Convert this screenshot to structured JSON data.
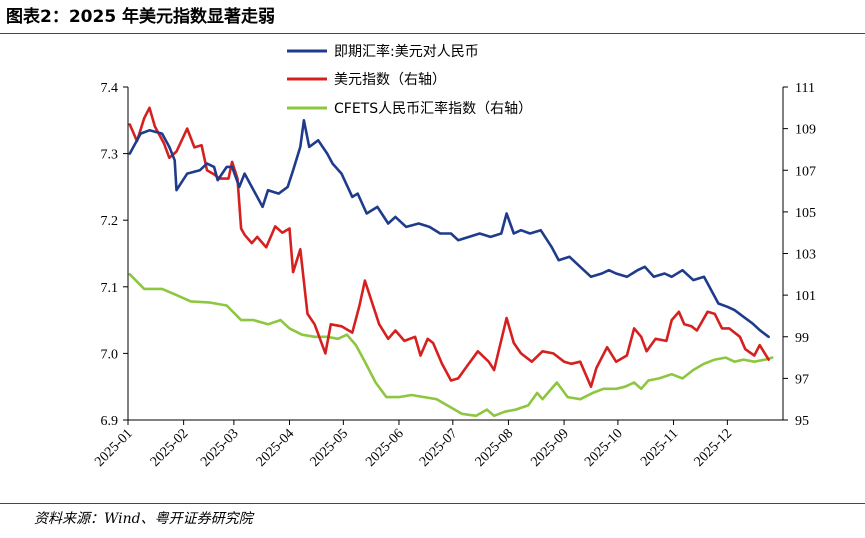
{
  "title": "图表2：2025 年美元指数显著走弱",
  "source": "资料来源：Wind、粤开证券研究院",
  "chart_data": {
    "type": "line",
    "x_ticks": [
      "2025-01",
      "2025-02",
      "2025-03",
      "2025-04",
      "2025-05",
      "2025-06",
      "2025-07",
      "2025-08",
      "2025-09",
      "2025-10",
      "2025-11",
      "2025-12"
    ],
    "y_left": {
      "ticks": [
        "6.9",
        "7.0",
        "7.1",
        "7.2",
        "7.3",
        "7.4"
      ],
      "ylim": [
        6.9,
        7.4
      ]
    },
    "y_right": {
      "ticks": [
        "95",
        "97",
        "99",
        "101",
        "103",
        "105",
        "107",
        "109",
        "111"
      ],
      "ylim": [
        95,
        111
      ]
    },
    "legend_position": "top-center",
    "grid": false,
    "series": [
      {
        "name": "即期汇率:美元对人民币",
        "axis": "left",
        "color": "#1f3b8c",
        "points": [
          [
            "2025-01-02",
            7.3
          ],
          [
            "2025-01-08",
            7.33
          ],
          [
            "2025-01-13",
            7.335
          ],
          [
            "2025-01-20",
            7.33
          ],
          [
            "2025-01-24",
            7.31
          ],
          [
            "2025-01-27",
            7.29
          ],
          [
            "2025-01-28",
            7.245
          ],
          [
            "2025-02-03",
            7.27
          ],
          [
            "2025-02-10",
            7.275
          ],
          [
            "2025-02-14",
            7.285
          ],
          [
            "2025-02-18",
            7.28
          ],
          [
            "2025-02-20",
            7.26
          ],
          [
            "2025-02-25",
            7.28
          ],
          [
            "2025-02-28",
            7.28
          ],
          [
            "2025-03-04",
            7.25
          ],
          [
            "2025-03-07",
            7.27
          ],
          [
            "2025-03-12",
            7.245
          ],
          [
            "2025-03-17",
            7.22
          ],
          [
            "2025-03-20",
            7.245
          ],
          [
            "2025-03-26",
            7.24
          ],
          [
            "2025-03-31",
            7.25
          ],
          [
            "2025-04-03",
            7.275
          ],
          [
            "2025-04-07",
            7.31
          ],
          [
            "2025-04-09",
            7.35
          ],
          [
            "2025-04-12",
            7.31
          ],
          [
            "2025-04-17",
            7.32
          ],
          [
            "2025-04-22",
            7.3
          ],
          [
            "2025-04-25",
            7.285
          ],
          [
            "2025-04-30",
            7.27
          ],
          [
            "2025-05-06",
            7.235
          ],
          [
            "2025-05-09",
            7.24
          ],
          [
            "2025-05-14",
            7.21
          ],
          [
            "2025-05-20",
            7.22
          ],
          [
            "2025-05-26",
            7.195
          ],
          [
            "2025-05-30",
            7.205
          ],
          [
            "2025-06-05",
            7.19
          ],
          [
            "2025-06-12",
            7.195
          ],
          [
            "2025-06-18",
            7.19
          ],
          [
            "2025-06-24",
            7.18
          ],
          [
            "2025-06-30",
            7.18
          ],
          [
            "2025-07-04",
            7.17
          ],
          [
            "2025-07-10",
            7.175
          ],
          [
            "2025-07-16",
            7.18
          ],
          [
            "2025-07-22",
            7.175
          ],
          [
            "2025-07-28",
            7.18
          ],
          [
            "2025-07-31",
            7.21
          ],
          [
            "2025-08-04",
            7.18
          ],
          [
            "2025-08-08",
            7.185
          ],
          [
            "2025-08-13",
            7.18
          ],
          [
            "2025-08-19",
            7.185
          ],
          [
            "2025-08-25",
            7.16
          ],
          [
            "2025-08-29",
            7.14
          ],
          [
            "2025-09-04",
            7.145
          ],
          [
            "2025-09-10",
            7.13
          ],
          [
            "2025-09-16",
            7.115
          ],
          [
            "2025-09-22",
            7.12
          ],
          [
            "2025-09-26",
            7.125
          ],
          [
            "2025-09-30",
            7.12
          ],
          [
            "2025-10-06",
            7.115
          ],
          [
            "2025-10-12",
            7.125
          ],
          [
            "2025-10-16",
            7.13
          ],
          [
            "2025-10-21",
            7.115
          ],
          [
            "2025-10-27",
            7.12
          ],
          [
            "2025-10-31",
            7.115
          ],
          [
            "2025-11-06",
            7.125
          ],
          [
            "2025-11-12",
            7.11
          ],
          [
            "2025-11-18",
            7.115
          ],
          [
            "2025-11-21",
            7.1
          ],
          [
            "2025-11-26",
            7.075
          ],
          [
            "2025-12-01",
            7.07
          ],
          [
            "2025-12-05",
            7.065
          ],
          [
            "2025-12-10",
            7.055
          ],
          [
            "2025-12-15",
            7.045
          ],
          [
            "2025-12-19",
            7.035
          ],
          [
            "2025-12-24",
            7.025
          ]
        ]
      },
      {
        "name": "美元指数（右轴）",
        "axis": "right",
        "color": "#d62020",
        "points": [
          [
            "2025-01-02",
            109.2
          ],
          [
            "2025-01-06",
            108.4
          ],
          [
            "2025-01-10",
            109.5
          ],
          [
            "2025-01-13",
            110.0
          ],
          [
            "2025-01-16",
            109.1
          ],
          [
            "2025-01-21",
            108.3
          ],
          [
            "2025-01-24",
            107.6
          ],
          [
            "2025-01-28",
            107.9
          ],
          [
            "2025-02-03",
            109.0
          ],
          [
            "2025-02-07",
            108.1
          ],
          [
            "2025-02-11",
            108.2
          ],
          [
            "2025-02-14",
            107.0
          ],
          [
            "2025-02-18",
            106.8
          ],
          [
            "2025-02-21",
            106.6
          ],
          [
            "2025-02-26",
            106.6
          ],
          [
            "2025-02-28",
            107.4
          ],
          [
            "2025-03-03",
            106.6
          ],
          [
            "2025-03-05",
            104.2
          ],
          [
            "2025-03-07",
            103.9
          ],
          [
            "2025-03-11",
            103.5
          ],
          [
            "2025-03-14",
            103.8
          ],
          [
            "2025-03-19",
            103.3
          ],
          [
            "2025-03-24",
            104.3
          ],
          [
            "2025-03-28",
            104.0
          ],
          [
            "2025-04-01",
            104.2
          ],
          [
            "2025-04-03",
            102.1
          ],
          [
            "2025-04-07",
            103.2
          ],
          [
            "2025-04-11",
            100.1
          ],
          [
            "2025-04-15",
            99.6
          ],
          [
            "2025-04-21",
            98.2
          ],
          [
            "2025-04-24",
            99.6
          ],
          [
            "2025-04-30",
            99.5
          ],
          [
            "2025-05-06",
            99.2
          ],
          [
            "2025-05-10",
            100.5
          ],
          [
            "2025-05-13",
            101.7
          ],
          [
            "2025-05-16",
            100.9
          ],
          [
            "2025-05-21",
            99.6
          ],
          [
            "2025-05-26",
            98.9
          ],
          [
            "2025-05-30",
            99.3
          ],
          [
            "2025-06-04",
            98.8
          ],
          [
            "2025-06-10",
            99.0
          ],
          [
            "2025-06-13",
            98.1
          ],
          [
            "2025-06-17",
            98.9
          ],
          [
            "2025-06-20",
            98.7
          ],
          [
            "2025-06-25",
            97.7
          ],
          [
            "2025-06-30",
            96.9
          ],
          [
            "2025-07-04",
            97.0
          ],
          [
            "2025-07-09",
            97.6
          ],
          [
            "2025-07-15",
            98.3
          ],
          [
            "2025-07-21",
            97.8
          ],
          [
            "2025-07-24",
            97.4
          ],
          [
            "2025-07-31",
            99.9
          ],
          [
            "2025-08-04",
            98.7
          ],
          [
            "2025-08-08",
            98.2
          ],
          [
            "2025-08-14",
            97.8
          ],
          [
            "2025-08-20",
            98.3
          ],
          [
            "2025-08-26",
            98.2
          ],
          [
            "2025-09-01",
            97.8
          ],
          [
            "2025-09-05",
            97.7
          ],
          [
            "2025-09-10",
            97.8
          ],
          [
            "2025-09-16",
            96.6
          ],
          [
            "2025-09-19",
            97.5
          ],
          [
            "2025-09-25",
            98.5
          ],
          [
            "2025-09-30",
            97.8
          ],
          [
            "2025-10-06",
            98.1
          ],
          [
            "2025-10-10",
            99.4
          ],
          [
            "2025-10-14",
            99.0
          ],
          [
            "2025-10-17",
            98.3
          ],
          [
            "2025-10-22",
            98.9
          ],
          [
            "2025-10-28",
            98.8
          ],
          [
            "2025-10-31",
            99.8
          ],
          [
            "2025-11-04",
            100.2
          ],
          [
            "2025-11-07",
            99.6
          ],
          [
            "2025-11-11",
            99.5
          ],
          [
            "2025-11-14",
            99.3
          ],
          [
            "2025-11-20",
            100.2
          ],
          [
            "2025-11-24",
            100.1
          ],
          [
            "2025-11-28",
            99.4
          ],
          [
            "2025-12-02",
            99.4
          ],
          [
            "2025-12-08",
            99.0
          ],
          [
            "2025-12-11",
            98.4
          ],
          [
            "2025-12-16",
            98.1
          ],
          [
            "2025-12-19",
            98.6
          ],
          [
            "2025-12-24",
            97.9
          ]
        ]
      },
      {
        "name": "CFETS人民币汇率指数（右轴）",
        "axis": "right",
        "color": "#8dc63f",
        "points": [
          [
            "2025-01-02",
            102.0
          ],
          [
            "2025-01-10",
            101.3
          ],
          [
            "2025-01-20",
            101.3
          ],
          [
            "2025-01-28",
            101.0
          ],
          [
            "2025-02-05",
            100.7
          ],
          [
            "2025-02-15",
            100.65
          ],
          [
            "2025-02-25",
            100.5
          ],
          [
            "2025-03-05",
            99.8
          ],
          [
            "2025-03-12",
            99.8
          ],
          [
            "2025-03-20",
            99.6
          ],
          [
            "2025-03-27",
            99.8
          ],
          [
            "2025-04-01",
            99.4
          ],
          [
            "2025-04-08",
            99.1
          ],
          [
            "2025-04-15",
            99.0
          ],
          [
            "2025-04-22",
            99.0
          ],
          [
            "2025-04-28",
            98.9
          ],
          [
            "2025-05-03",
            99.1
          ],
          [
            "2025-05-08",
            98.6
          ],
          [
            "2025-05-13",
            97.8
          ],
          [
            "2025-05-19",
            96.8
          ],
          [
            "2025-05-25",
            96.1
          ],
          [
            "2025-06-01",
            96.1
          ],
          [
            "2025-06-08",
            96.2
          ],
          [
            "2025-06-15",
            96.1
          ],
          [
            "2025-06-22",
            96.0
          ],
          [
            "2025-06-30",
            95.6
          ],
          [
            "2025-07-06",
            95.3
          ],
          [
            "2025-07-14",
            95.2
          ],
          [
            "2025-07-20",
            95.5
          ],
          [
            "2025-07-24",
            95.2
          ],
          [
            "2025-07-30",
            95.4
          ],
          [
            "2025-08-05",
            95.5
          ],
          [
            "2025-08-12",
            95.7
          ],
          [
            "2025-08-17",
            96.3
          ],
          [
            "2025-08-20",
            96.0
          ],
          [
            "2025-08-23",
            96.3
          ],
          [
            "2025-08-28",
            96.8
          ],
          [
            "2025-09-03",
            96.1
          ],
          [
            "2025-09-10",
            96.0
          ],
          [
            "2025-09-17",
            96.3
          ],
          [
            "2025-09-23",
            96.5
          ],
          [
            "2025-09-30",
            96.5
          ],
          [
            "2025-10-05",
            96.6
          ],
          [
            "2025-10-10",
            96.8
          ],
          [
            "2025-10-14",
            96.5
          ],
          [
            "2025-10-18",
            96.9
          ],
          [
            "2025-10-24",
            97.0
          ],
          [
            "2025-10-31",
            97.2
          ],
          [
            "2025-11-06",
            97.0
          ],
          [
            "2025-11-12",
            97.4
          ],
          [
            "2025-11-18",
            97.7
          ],
          [
            "2025-11-24",
            97.9
          ],
          [
            "2025-11-30",
            98.0
          ],
          [
            "2025-12-05",
            97.8
          ],
          [
            "2025-12-10",
            97.9
          ],
          [
            "2025-12-16",
            97.8
          ],
          [
            "2025-12-22",
            97.9
          ],
          [
            "2025-12-26",
            98.0
          ]
        ]
      }
    ]
  }
}
